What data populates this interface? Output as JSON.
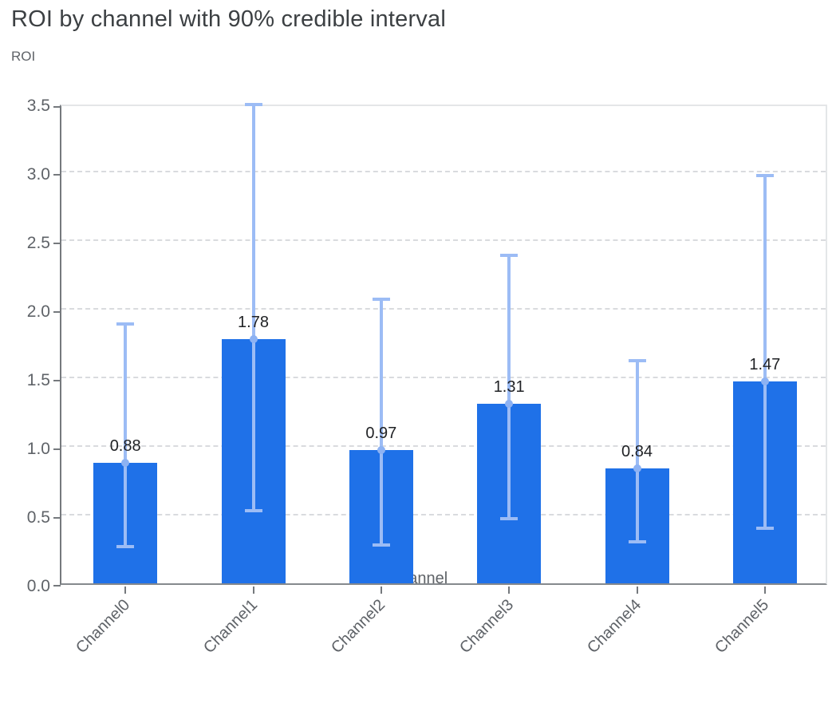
{
  "chart_data": {
    "type": "bar",
    "title": "ROI by channel with 90% credible interval",
    "ylabel": "ROI",
    "xlabel": "Channel",
    "categories": [
      "Channel0",
      "Channel1",
      "Channel2",
      "Channel3",
      "Channel4",
      "Channel5"
    ],
    "series": [
      {
        "name": "ROI",
        "values": [
          0.88,
          1.78,
          0.97,
          1.31,
          0.84,
          1.47
        ]
      }
    ],
    "value_labels": [
      "0.88",
      "1.78",
      "0.97",
      "1.31",
      "0.84",
      "1.47"
    ],
    "error_bars": {
      "name": "90% credible interval",
      "low": [
        0.27,
        0.53,
        0.28,
        0.47,
        0.3,
        0.4
      ],
      "high": [
        1.89,
        3.49,
        2.07,
        2.39,
        1.62,
        2.97
      ]
    },
    "ylim": [
      0,
      3.5
    ],
    "ytick_step": 0.5,
    "yticks": [
      "0.0",
      "0.5",
      "1.0",
      "1.5",
      "2.0",
      "2.5",
      "3.0",
      "3.5"
    ],
    "grid": "horizontal-dashed",
    "legend": "none",
    "colors": {
      "bar": "#1f71e8",
      "error_bar": "#9cbcf5",
      "error_marker": "#8db2f3",
      "title_text": "#3c4043",
      "axis_text": "#5f6368",
      "value_label_text": "#1f2124",
      "axis_line": "#75797d",
      "grid_line": "#d9dbde",
      "plot_border": "#e4e6e8",
      "background": "#ffffff"
    }
  }
}
